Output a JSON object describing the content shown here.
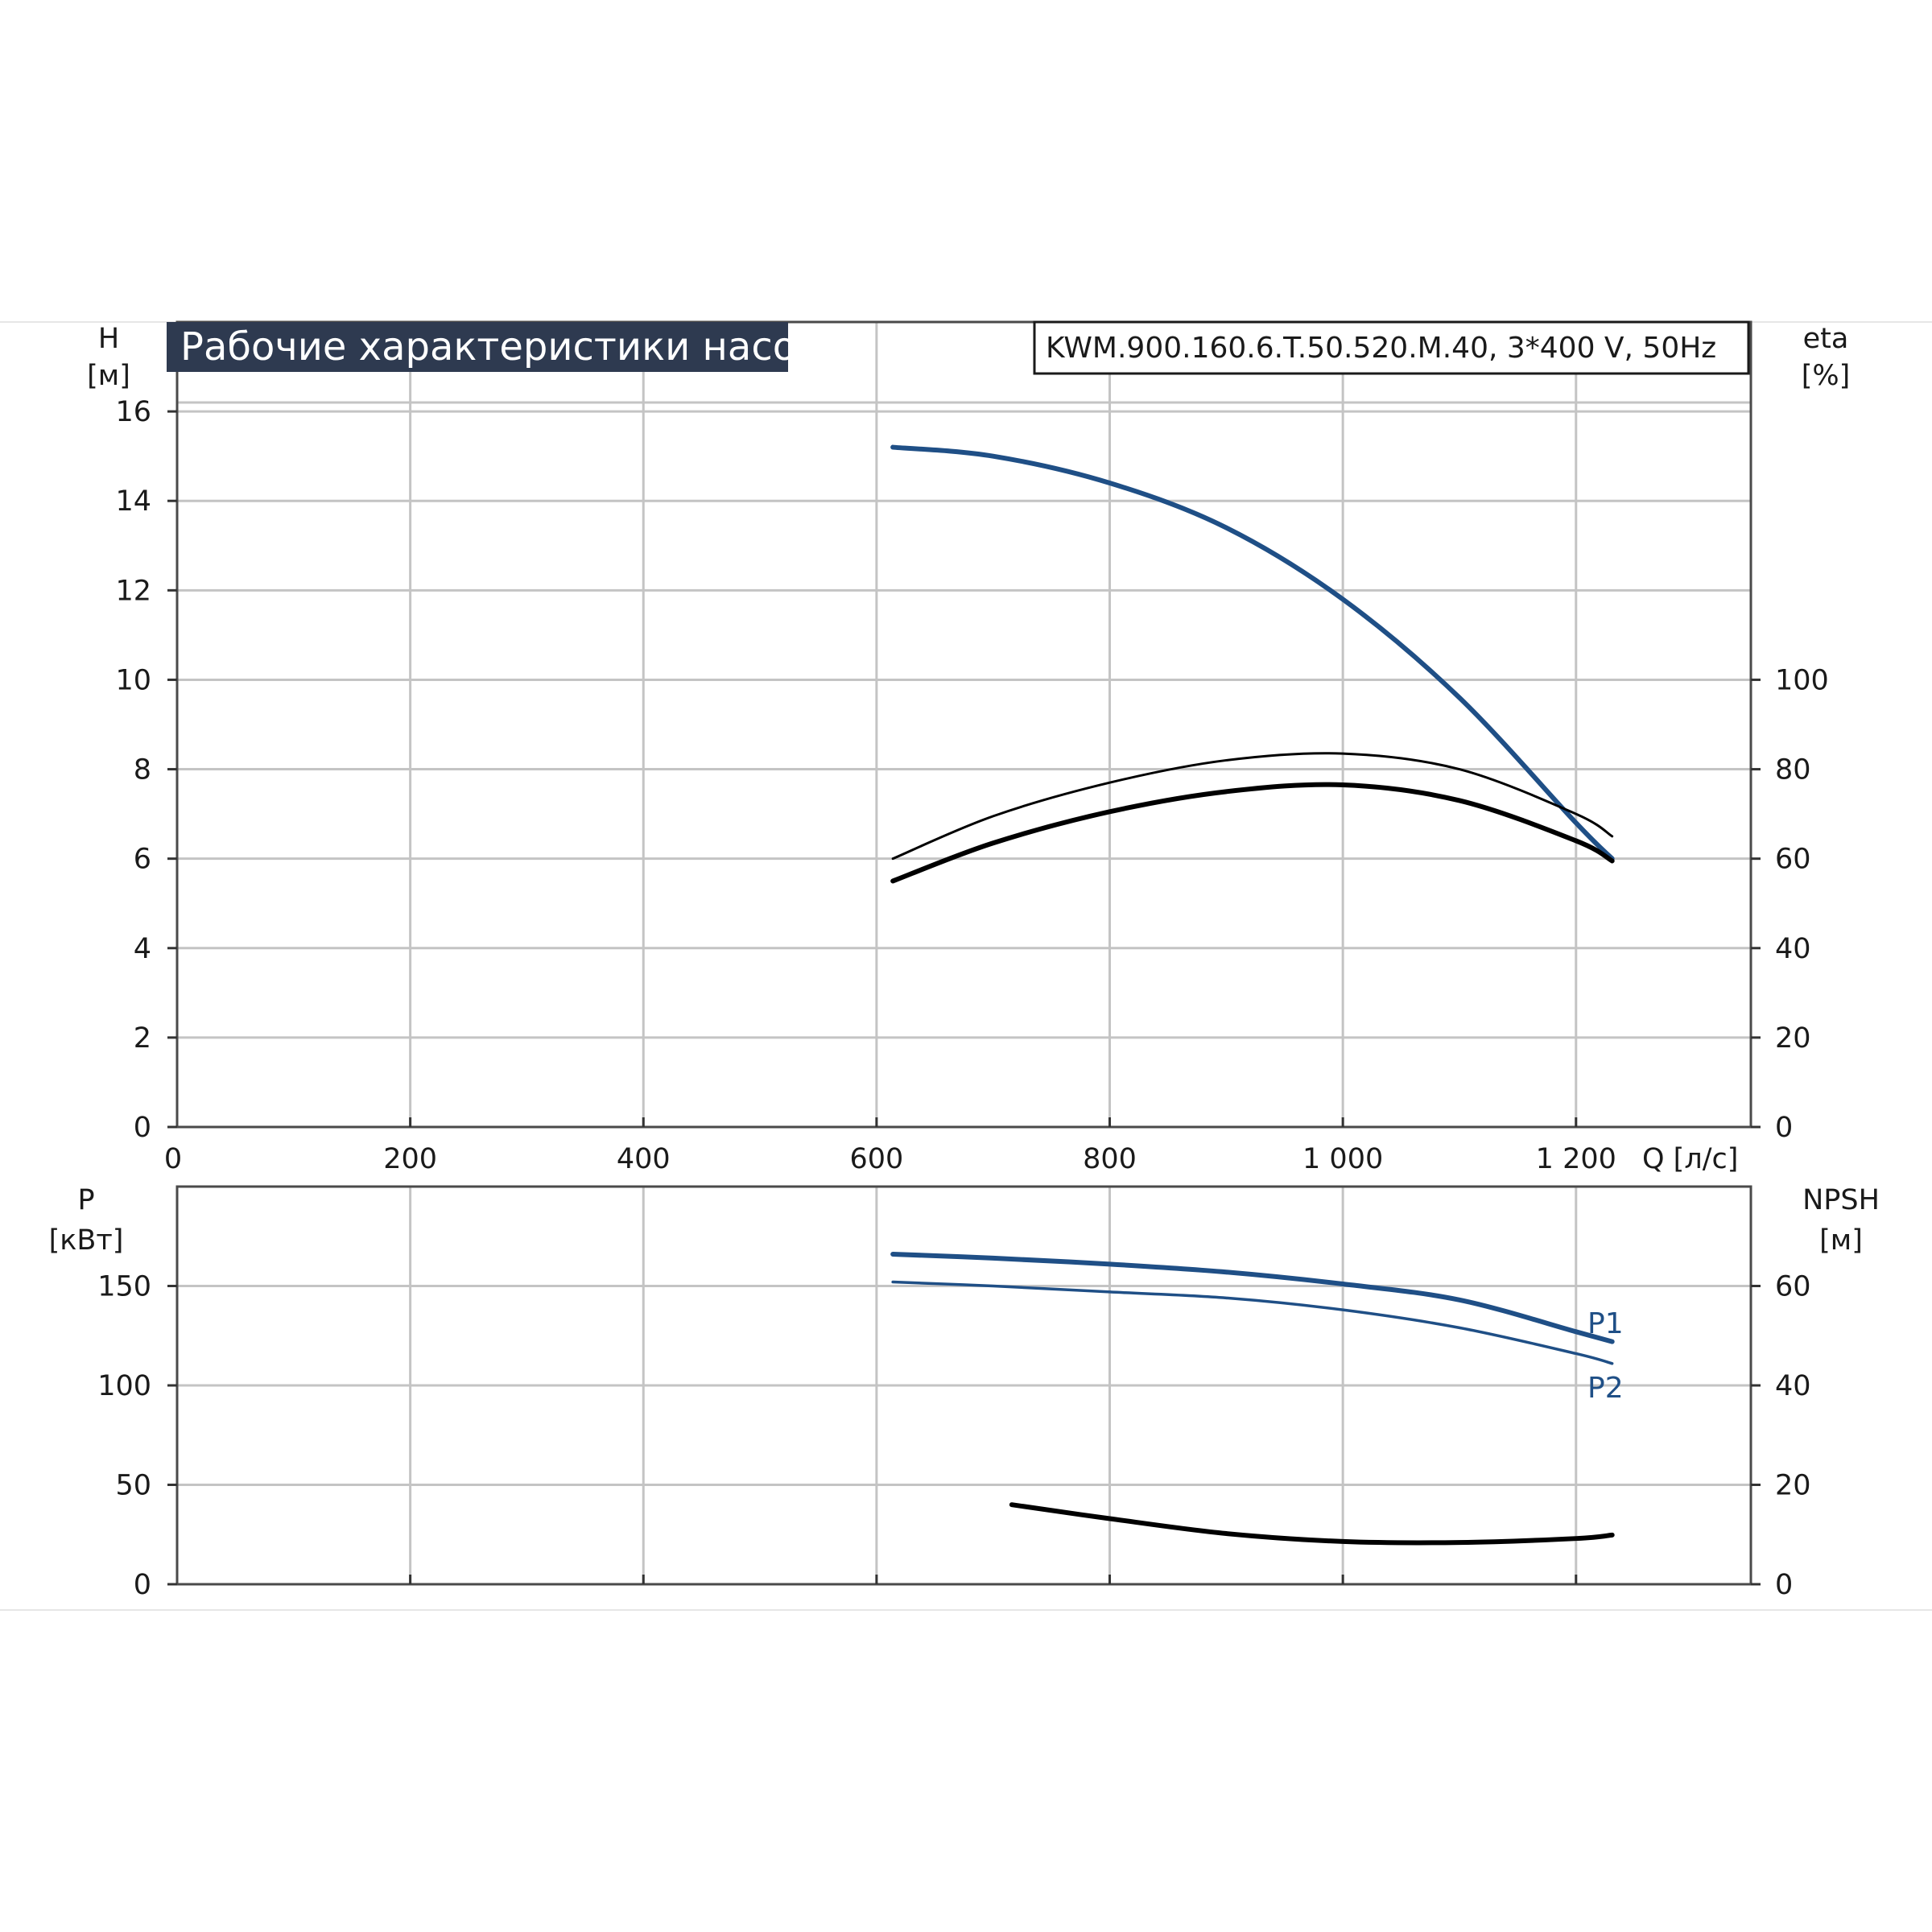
{
  "header": {
    "title": "Рабочие характеристики насоса",
    "model": "KWM.900.160.6.T.50.520.M.40, 3*400 V, 50Hz"
  },
  "colors": {
    "title_bg": "#2e3a50",
    "blue": "#1f4f86",
    "black": "#000000",
    "grid": "#c4c4c4"
  },
  "chart_data": [
    {
      "type": "line",
      "x_axis": {
        "label": "Q [л/с]",
        "ticks": [
          "0",
          "200",
          "400",
          "600",
          "800",
          "1 000",
          "1 200"
        ],
        "tick_values": [
          0,
          200,
          400,
          600,
          800,
          1000,
          1200
        ],
        "range": [
          0,
          1350
        ]
      },
      "y_axis_left": {
        "label_line1": "H",
        "label_line2": "[м]",
        "ticks": [
          "0",
          "2",
          "4",
          "6",
          "8",
          "10",
          "12",
          "14",
          "16"
        ],
        "tick_values": [
          0,
          2,
          4,
          6,
          8,
          10,
          12,
          14,
          16
        ],
        "range": [
          0,
          18
        ]
      },
      "y_axis_right": {
        "label_line1": "eta",
        "label_line2": "[%]",
        "ticks": [
          "0",
          "20",
          "40",
          "60",
          "80",
          "100"
        ],
        "tick_values": [
          0,
          20,
          40,
          60,
          80,
          100
        ],
        "range": [
          0,
          180
        ]
      },
      "grid": true,
      "series": [
        {
          "axis": "left",
          "color": "#1f4f86",
          "width": 6,
          "x": [
            614,
            700,
            800,
            900,
            1000,
            1100,
            1200,
            1231
          ],
          "y": [
            15.2,
            15.0,
            14.4,
            13.4,
            11.8,
            9.6,
            6.8,
            6.0
          ]
        },
        {
          "axis": "right",
          "color": "#000000",
          "width": 3,
          "x": [
            614,
            700,
            800,
            900,
            1000,
            1100,
            1200,
            1231
          ],
          "y": [
            60.0,
            69.5,
            77.0,
            82.0,
            83.5,
            80.0,
            70.0,
            65.0
          ]
        },
        {
          "axis": "right",
          "color": "#000000",
          "width": 6,
          "x": [
            614,
            700,
            800,
            900,
            1000,
            1100,
            1200,
            1231
          ],
          "y": [
            55.0,
            63.5,
            70.5,
            75.0,
            76.5,
            73.0,
            64.0,
            59.5
          ]
        }
      ]
    },
    {
      "type": "line",
      "x_axis": {
        "range": [
          0,
          1350
        ]
      },
      "y_axis_left": {
        "label_line1": "P",
        "label_line2": "[кВт]",
        "ticks": [
          "0",
          "50",
          "100",
          "150"
        ],
        "tick_values": [
          0,
          50,
          100,
          150
        ],
        "range": [
          0,
          200
        ]
      },
      "y_axis_right": {
        "label_line1": "NPSH",
        "label_line2": "[м]",
        "ticks": [
          "0",
          "20",
          "40",
          "60"
        ],
        "tick_values": [
          0,
          20,
          40,
          60
        ],
        "range": [
          0,
          80
        ]
      },
      "grid": true,
      "series": [
        {
          "name": "P1",
          "axis": "left",
          "color": "#1f4f86",
          "width": 6,
          "x": [
            614,
            700,
            800,
            900,
            1000,
            1100,
            1200,
            1231
          ],
          "y": [
            166,
            164,
            161,
            157,
            151,
            143,
            127,
            122
          ]
        },
        {
          "name": "P2",
          "axis": "left",
          "color": "#1f4f86",
          "width": 3.5,
          "x": [
            614,
            700,
            800,
            900,
            1000,
            1100,
            1200,
            1231
          ],
          "y": [
            152,
            150,
            147,
            144,
            138,
            129,
            116,
            111
          ]
        },
        {
          "axis": "right",
          "color": "#000000",
          "width": 6,
          "x": [
            716,
            800,
            900,
            1000,
            1100,
            1200,
            1231
          ],
          "y": [
            16.0,
            13.2,
            10.2,
            8.6,
            8.4,
            9.2,
            9.9
          ]
        }
      ]
    }
  ]
}
